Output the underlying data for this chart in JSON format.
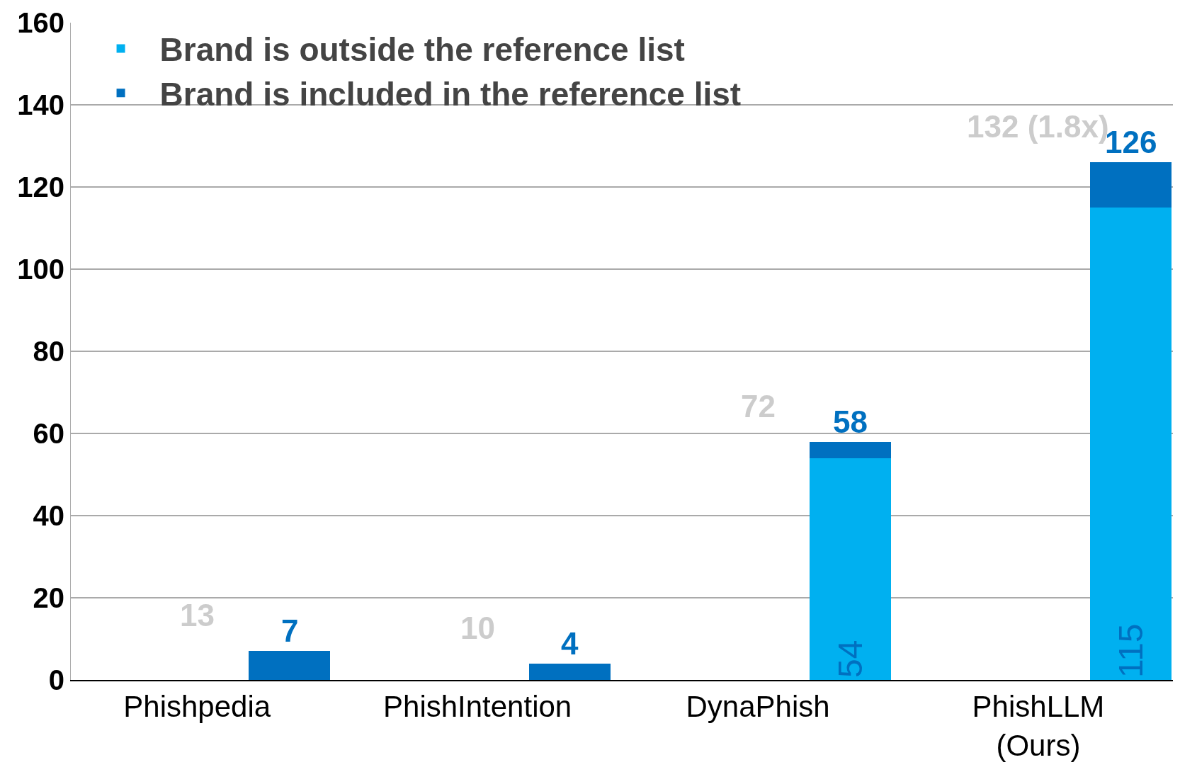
{
  "chart_data": {
    "type": "bar",
    "stacked": true,
    "categories": [
      "Phishpedia",
      "PhishIntention",
      "DynaPhish",
      "PhishLLM (Ours)"
    ],
    "series": [
      {
        "name": "Brand is outside the reference list",
        "color": "#00b0f0",
        "values": [
          0,
          0,
          54,
          115
        ],
        "value_labels": [
          null,
          null,
          "54",
          "115"
        ]
      },
      {
        "name": "Brand is included in the reference list",
        "color": "#0070c0",
        "values": [
          7,
          4,
          4,
          11
        ]
      }
    ],
    "totals": [
      "7",
      "4",
      "58",
      "126"
    ],
    "annotations": [
      "13",
      "10",
      "72",
      "132 (1.8x)"
    ],
    "ylim": [
      0,
      160
    ],
    "yticks": [
      0,
      20,
      40,
      60,
      80,
      100,
      120,
      140,
      160
    ],
    "grid": "y",
    "legend": "top left"
  }
}
